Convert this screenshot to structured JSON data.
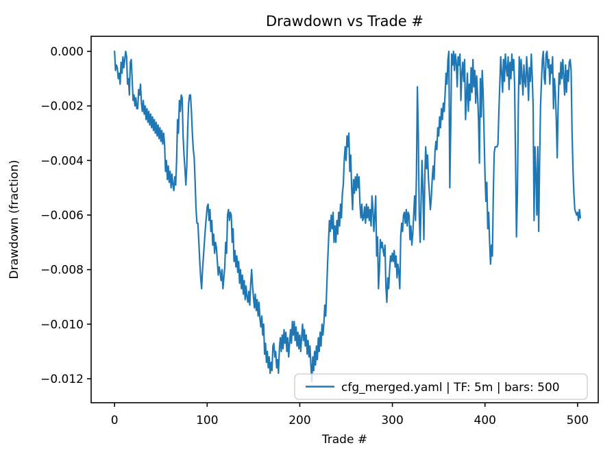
{
  "title": "Drawdown vs Trade #",
  "axes": {
    "xlabel": "Trade #",
    "ylabel": "Drawdown (fraction)"
  },
  "legend": {
    "label": "cfg_merged.yaml | TF: 5m | bars: 500",
    "position": "lower right"
  },
  "colors": {
    "line": "#1f77b4",
    "spine": "#000000",
    "text": "#000000",
    "legend_border": "#cccccc",
    "legend_face": "rgba(255,255,255,0.8)",
    "background": "#ffffff"
  },
  "chart_data": {
    "type": "line",
    "title": "Drawdown vs Trade #",
    "xlabel": "Trade #",
    "ylabel": "Drawdown (fraction)",
    "grid": false,
    "legend_position": "lower right",
    "legend_entries": [
      "cfg_merged.yaml | TF: 5m | bars: 500"
    ],
    "x_ticks": [
      0,
      100,
      200,
      300,
      400,
      500
    ],
    "x_tick_labels": [
      "0",
      "100",
      "200",
      "300",
      "400",
      "500"
    ],
    "y_ticks": [
      0.0,
      -0.002,
      -0.004,
      -0.006,
      -0.008,
      -0.01,
      -0.012
    ],
    "y_tick_labels": [
      "0.000",
      "−0.002",
      "−0.004",
      "−0.006",
      "−0.008",
      "−0.010",
      "−0.012"
    ],
    "xlim": [
      -25.3,
      522.3
    ],
    "ylim": [
      -0.012879,
      0.000552
    ],
    "series": [
      {
        "name": "cfg_merged.yaml | TF: 5m | bars: 500",
        "x_start": 0,
        "x_step": 1,
        "y": [
          0.0,
          -0.0007,
          -0.0005,
          -0.0006,
          -0.001,
          -0.0008,
          -0.0012,
          -0.0004,
          -0.0008,
          -0.0002,
          -0.0006,
          -0.0003,
          0.0,
          -0.0002,
          -0.0012,
          -0.001,
          -0.0016,
          -0.0004,
          -0.0003,
          -0.001,
          -0.0018,
          -0.0016,
          -0.002,
          -0.0017,
          -0.0021,
          -0.0021,
          -0.0014,
          -0.0016,
          -0.0012,
          -0.0019,
          -0.0022,
          -0.0018,
          -0.0023,
          -0.002,
          -0.0025,
          -0.0021,
          -0.0026,
          -0.0022,
          -0.0027,
          -0.0023,
          -0.0028,
          -0.0024,
          -0.0029,
          -0.0025,
          -0.003,
          -0.0026,
          -0.0031,
          -0.0027,
          -0.0032,
          -0.0028,
          -0.0033,
          -0.0029,
          -0.0034,
          -0.003,
          -0.0034,
          -0.0044,
          -0.004,
          -0.0047,
          -0.0042,
          -0.0048,
          -0.0044,
          -0.005,
          -0.0045,
          -0.0049,
          -0.0051,
          -0.0046,
          -0.0049,
          -0.004,
          -0.0025,
          -0.003,
          -0.0018,
          -0.0022,
          -0.0016,
          -0.0017,
          -0.0031,
          -0.0038,
          -0.0043,
          -0.0049,
          -0.0042,
          -0.0028,
          -0.0019,
          -0.0016,
          -0.0016,
          -0.0022,
          -0.003,
          -0.0036,
          -0.0039,
          -0.0048,
          -0.0058,
          -0.0063,
          -0.0063,
          -0.007,
          -0.0077,
          -0.0083,
          -0.0087,
          -0.008,
          -0.0075,
          -0.007,
          -0.0065,
          -0.0061,
          -0.0057,
          -0.0056,
          -0.0062,
          -0.0058,
          -0.0066,
          -0.0062,
          -0.0071,
          -0.0067,
          -0.0074,
          -0.007,
          -0.0072,
          -0.0077,
          -0.0082,
          -0.0079,
          -0.0081,
          -0.0084,
          -0.008,
          -0.0087,
          -0.0083,
          -0.0079,
          -0.007,
          -0.0074,
          -0.006,
          -0.0058,
          -0.0062,
          -0.0059,
          -0.006,
          -0.007,
          -0.0065,
          -0.0077,
          -0.0073,
          -0.0079,
          -0.0075,
          -0.0081,
          -0.0077,
          -0.0085,
          -0.008,
          -0.0087,
          -0.0082,
          -0.0089,
          -0.0084,
          -0.0091,
          -0.0086,
          -0.009,
          -0.0092,
          -0.0088,
          -0.0093,
          -0.0085,
          -0.008,
          -0.0086,
          -0.009,
          -0.0094,
          -0.0089,
          -0.0095,
          -0.0091,
          -0.0097,
          -0.0092,
          -0.0098,
          -0.0101,
          -0.0097,
          -0.0104,
          -0.01,
          -0.0111,
          -0.0107,
          -0.0114,
          -0.011,
          -0.0116,
          -0.0112,
          -0.0118,
          -0.0114,
          -0.0117,
          -0.0108,
          -0.0107,
          -0.0112,
          -0.011,
          -0.0116,
          -0.0113,
          -0.0118,
          -0.0109,
          -0.0105,
          -0.011,
          -0.0104,
          -0.0109,
          -0.0102,
          -0.0107,
          -0.0103,
          -0.011,
          -0.0105,
          -0.0112,
          -0.0107,
          -0.0102,
          -0.0107,
          -0.0099,
          -0.0104,
          -0.0099,
          -0.0106,
          -0.0101,
          -0.0108,
          -0.0103,
          -0.0109,
          -0.0104,
          -0.011,
          -0.0105,
          -0.01,
          -0.0106,
          -0.0102,
          -0.0108,
          -0.0104,
          -0.0111,
          -0.0106,
          -0.0112,
          -0.0108,
          -0.0115,
          -0.0121,
          -0.0112,
          -0.0117,
          -0.011,
          -0.0115,
          -0.0108,
          -0.0113,
          -0.0105,
          -0.011,
          -0.0103,
          -0.0108,
          -0.01,
          -0.0104,
          -0.01,
          -0.0093,
          -0.0097,
          -0.0088,
          -0.0078,
          -0.007,
          -0.0062,
          -0.0066,
          -0.006,
          -0.0065,
          -0.0059,
          -0.007,
          -0.0064,
          -0.007,
          -0.0062,
          -0.0067,
          -0.0059,
          -0.0064,
          -0.0056,
          -0.0061,
          -0.0052,
          -0.0049,
          -0.004,
          -0.0035,
          -0.004,
          -0.0031,
          -0.0035,
          -0.003,
          -0.0044,
          -0.0038,
          -0.005,
          -0.0058,
          -0.0047,
          -0.0052,
          -0.0046,
          -0.0051,
          -0.0045,
          -0.005,
          -0.0046,
          -0.0056,
          -0.0061,
          -0.0056,
          -0.0062,
          -0.0061,
          -0.0057,
          -0.0063,
          -0.0056,
          -0.0061,
          -0.0057,
          -0.0062,
          -0.0058,
          -0.0064,
          -0.0053,
          -0.0058,
          -0.0066,
          -0.006,
          -0.0053,
          -0.0075,
          -0.0068,
          -0.0087,
          -0.008,
          -0.0069,
          -0.0072,
          -0.007,
          -0.0073,
          -0.0075,
          -0.0071,
          -0.0086,
          -0.0092,
          -0.0083,
          -0.0087,
          -0.008,
          -0.0075,
          -0.0077,
          -0.0074,
          -0.0077,
          -0.0073,
          -0.0079,
          -0.0075,
          -0.0083,
          -0.0078,
          -0.0081,
          -0.0087,
          -0.0068,
          -0.0063,
          -0.0066,
          -0.006,
          -0.0059,
          -0.0063,
          -0.0058,
          -0.0064,
          -0.0059,
          -0.006,
          -0.0069,
          -0.0064,
          -0.0071,
          -0.0067,
          -0.006,
          -0.0053,
          -0.0062,
          -0.0045,
          -0.0013,
          -0.003,
          -0.006,
          -0.007,
          -0.0055,
          -0.004,
          -0.0051,
          -0.0069,
          -0.0046,
          -0.0035,
          -0.0043,
          -0.0038,
          -0.0047,
          -0.0052,
          -0.0058,
          -0.0054,
          -0.0047,
          -0.0042,
          -0.0047,
          -0.0037,
          -0.0033,
          -0.0036,
          -0.0028,
          -0.0031,
          -0.0024,
          -0.0028,
          -0.0021,
          -0.0025,
          -0.0019,
          -0.0022,
          -0.0015,
          -0.0008,
          -0.0012,
          -0.0003,
          0.0,
          -0.005,
          -0.0028,
          -0.0001,
          -0.0005,
          0.0,
          -0.0007,
          -0.0001,
          -0.0004,
          -0.0013,
          -0.0002,
          -0.0005,
          -0.0001,
          -0.0018,
          -0.0008,
          -0.0004,
          -0.0011,
          -0.0003,
          -0.0025,
          -0.0017,
          -0.0008,
          -0.0022,
          -0.0012,
          -0.0018,
          -0.0006,
          -0.0015,
          -0.0003,
          -0.0013,
          -0.0007,
          -0.0019,
          -0.0009,
          -0.0016,
          -0.0025,
          -0.0041,
          -0.001,
          -0.0024,
          -0.0007,
          -0.0015,
          -0.003,
          -0.0045,
          -0.0055,
          -0.0048,
          -0.0065,
          -0.0059,
          -0.007,
          -0.0078,
          -0.0071,
          -0.0075,
          -0.0052,
          -0.0037,
          -0.0035,
          -0.0035,
          -0.0035,
          -0.0034,
          -0.0022,
          -0.0012,
          -0.0002,
          -0.0008,
          -0.0015,
          -0.0003,
          -0.0011,
          -0.0001,
          -0.0006,
          -0.0009,
          -0.0002,
          -0.0014,
          -0.0004,
          -0.001,
          -0.0001,
          -0.0007,
          -0.0003,
          -0.0012,
          -0.004,
          -0.0068,
          -0.0052,
          -0.002,
          -0.0002,
          -0.0012,
          -0.0003,
          -0.0009,
          -0.0016,
          -0.0005,
          -0.0011,
          -0.0013,
          -0.0002,
          -0.0008,
          -0.0018,
          -0.0006,
          -0.0011,
          -0.0001,
          -0.0009,
          -0.002,
          -0.0062,
          -0.0035,
          -0.0045,
          -0.006,
          -0.0035,
          -0.0066,
          -0.004,
          -0.002,
          -0.0011,
          -0.0003,
          0.0,
          -0.001,
          -0.0012,
          -0.0001,
          0.0,
          -0.0006,
          -0.0003,
          -0.0012,
          -0.0005,
          -0.0008,
          -0.0002,
          -0.0021,
          -0.001,
          -0.0015,
          -0.0025,
          -0.0039,
          -0.002,
          -0.0008,
          -0.0012,
          -0.0004,
          -0.001,
          -0.0003,
          -0.0009,
          -0.0016,
          -0.0005,
          -0.0015,
          -0.0007,
          -0.0011,
          -0.0004,
          -0.0003,
          -0.0007,
          -0.0029,
          -0.0043,
          -0.0052,
          -0.0058,
          -0.0059,
          -0.006,
          -0.0059,
          -0.0062,
          -0.0058,
          -0.0061
        ]
      }
    ]
  }
}
